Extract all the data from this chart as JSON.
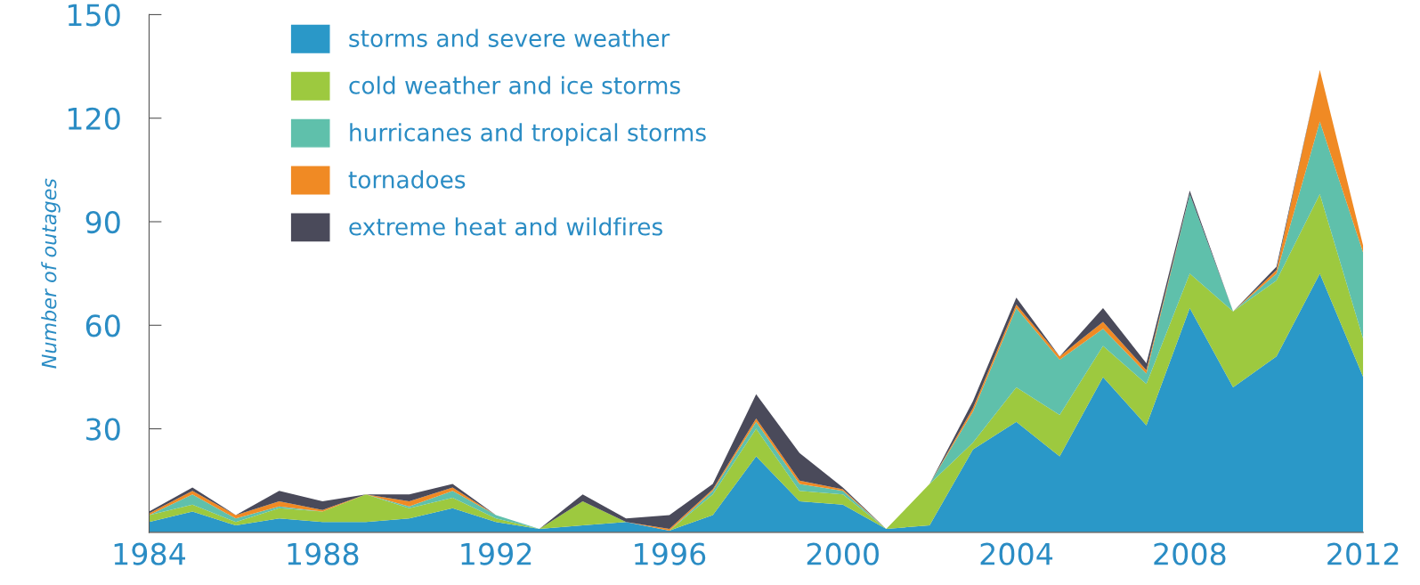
{
  "chart_data": {
    "type": "area",
    "stacked": true,
    "ylabel": "Number of outages",
    "x": [
      1984,
      1985,
      1986,
      1987,
      1988,
      1989,
      1990,
      1991,
      1992,
      1993,
      1994,
      1995,
      1996,
      1997,
      1998,
      1999,
      2000,
      2001,
      2002,
      2003,
      2004,
      2005,
      2006,
      2007,
      2008,
      2009,
      2010,
      2011,
      2012
    ],
    "xlim": [
      1984,
      2012
    ],
    "xticks": [
      1984,
      1988,
      1992,
      1996,
      2000,
      2004,
      2008,
      2012
    ],
    "ylim": [
      0,
      150
    ],
    "yticks": [
      30,
      60,
      90,
      120,
      150
    ],
    "grid": false,
    "legend": "top left",
    "series": [
      {
        "name": "storms and severe weather",
        "color": "#2a98c8",
        "values": [
          3,
          6,
          2,
          4,
          3,
          3,
          4,
          7,
          3,
          1,
          2,
          3,
          0.5,
          5,
          22,
          9,
          8,
          1,
          2,
          24,
          32,
          22,
          45,
          31,
          65,
          42,
          51,
          75,
          45
        ]
      },
      {
        "name": "cold weather and ice storms",
        "color": "#9dc93f",
        "values": [
          2,
          2,
          1,
          3,
          3,
          8,
          3,
          3,
          1,
          0,
          7,
          0,
          0,
          6,
          8,
          3,
          3,
          0,
          12,
          2,
          10,
          12,
          9,
          12,
          10,
          22,
          22,
          23,
          11
        ]
      },
      {
        "name": "hurricanes and tropical storms",
        "color": "#5fc0ab",
        "values": [
          0,
          3,
          1,
          0.5,
          0,
          0,
          0.5,
          2,
          1,
          0,
          0,
          0,
          0,
          1,
          2,
          2,
          1,
          0,
          0,
          9,
          23,
          16,
          5,
          3,
          23,
          0,
          2,
          21,
          25
        ]
      },
      {
        "name": "tornadoes",
        "color": "#f08a24",
        "values": [
          0.5,
          1,
          1,
          1.5,
          0.5,
          0,
          1.5,
          1,
          0,
          0,
          0,
          0,
          0.5,
          0.5,
          1,
          1,
          0.5,
          0,
          0,
          1,
          1,
          1,
          2,
          1,
          0,
          0,
          1,
          15,
          2
        ]
      },
      {
        "name": "extreme heat and wildfires",
        "color": "#4a4a5a",
        "values": [
          0.5,
          1,
          0,
          3,
          2.5,
          0,
          2,
          1,
          0,
          0,
          2,
          1,
          4,
          1.5,
          7,
          8,
          0.5,
          0,
          0,
          2,
          2,
          0,
          4,
          2,
          1,
          0,
          1,
          0,
          0
        ]
      }
    ]
  }
}
